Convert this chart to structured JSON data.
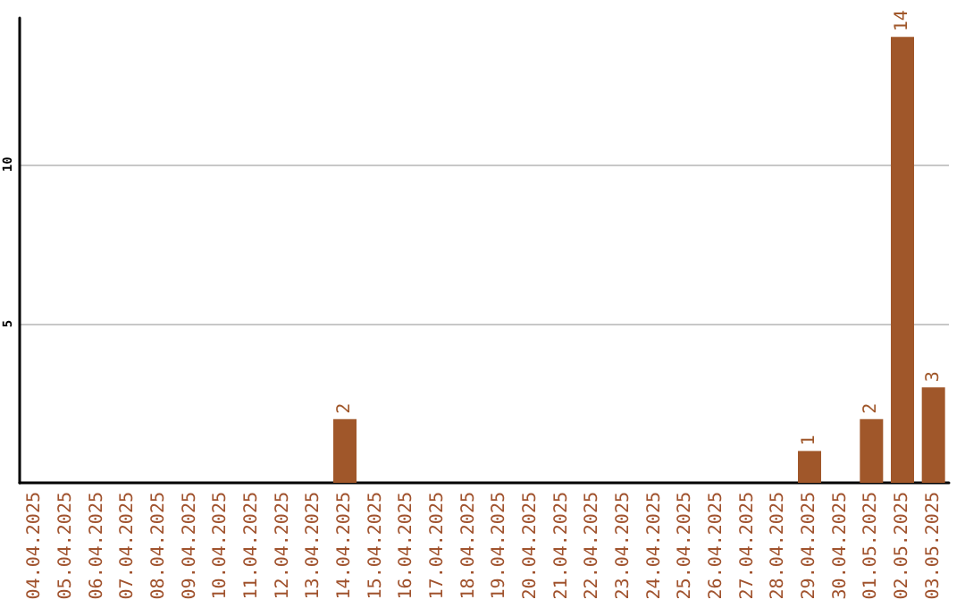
{
  "chart_data": {
    "type": "bar",
    "categories": [
      "04.04.2025",
      "05.04.2025",
      "06.04.2025",
      "07.04.2025",
      "08.04.2025",
      "09.04.2025",
      "10.04.2025",
      "11.04.2025",
      "12.04.2025",
      "13.04.2025",
      "14.04.2025",
      "15.04.2025",
      "16.04.2025",
      "17.04.2025",
      "18.04.2025",
      "19.04.2025",
      "20.04.2025",
      "21.04.2025",
      "22.04.2025",
      "23.04.2025",
      "24.04.2025",
      "25.04.2025",
      "26.04.2025",
      "27.04.2025",
      "28.04.2025",
      "29.04.2025",
      "30.04.2025",
      "01.05.2025",
      "02.05.2025",
      "03.05.2025"
    ],
    "values": [
      0,
      0,
      0,
      0,
      0,
      0,
      0,
      0,
      0,
      0,
      2,
      0,
      0,
      0,
      0,
      0,
      0,
      0,
      0,
      0,
      0,
      0,
      0,
      0,
      0,
      1,
      0,
      2,
      14,
      3
    ],
    "value_labels": [
      null,
      null,
      null,
      null,
      null,
      null,
      null,
      null,
      null,
      null,
      "2",
      null,
      null,
      null,
      null,
      null,
      null,
      null,
      null,
      null,
      null,
      null,
      null,
      null,
      null,
      "1",
      null,
      "2",
      "14",
      "3"
    ],
    "color": "#a0572a",
    "ylim": [
      0,
      14.6
    ],
    "yticks": [
      5,
      10
    ],
    "grid": "y"
  }
}
